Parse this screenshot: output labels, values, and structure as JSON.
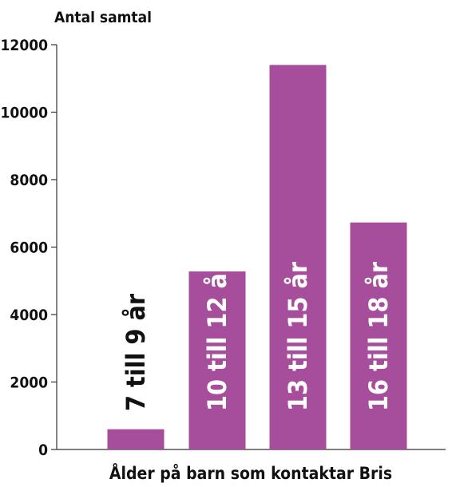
{
  "chart_data": {
    "type": "bar",
    "ylabel": "Antal samtal",
    "xlabel": "Ålder på barn som kontaktar Bris",
    "ylim": [
      0,
      12000
    ],
    "yticks": [
      0,
      2000,
      4000,
      6000,
      8000,
      10000,
      12000
    ],
    "grid": false,
    "categories": [
      "7 till 9 år",
      "10 till 12 år",
      "13 till 15 år",
      "16 till 18 år"
    ],
    "values": [
      600,
      5280,
      11400,
      6730
    ],
    "bar_color": "#a64d9b",
    "label_colors": [
      "#111111",
      "#ffffff",
      "#ffffff",
      "#ffffff"
    ]
  }
}
